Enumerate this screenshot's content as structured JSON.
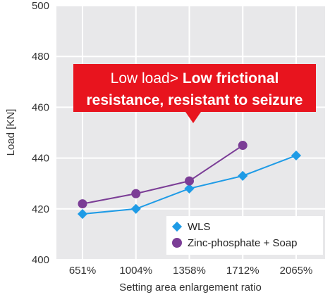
{
  "chart_data": {
    "type": "line",
    "xlabel": "Setting area enlargement ratio",
    "ylabel": "Load [KN]",
    "categories": [
      "651%",
      "1004%",
      "1358%",
      "1712%",
      "2065%"
    ],
    "ylim": [
      400,
      500
    ],
    "yticks": [
      400,
      420,
      440,
      460,
      480,
      500
    ],
    "grid": true,
    "legend_position": "bottom-right",
    "series": [
      {
        "name": "WLS",
        "marker": "diamond",
        "color": "#1e9be6",
        "values": [
          418,
          420,
          428,
          433,
          441
        ]
      },
      {
        "name": "Zinc-phosphate + Soap",
        "marker": "circle",
        "color": "#7b3d96",
        "values": [
          422,
          426,
          431,
          445,
          null
        ]
      }
    ],
    "annotation": {
      "line1_normal": "Low load> ",
      "line1_bold": "Low frictional",
      "line2_bold": "resistance, resistant to seizure",
      "background": "#e8141e"
    }
  }
}
